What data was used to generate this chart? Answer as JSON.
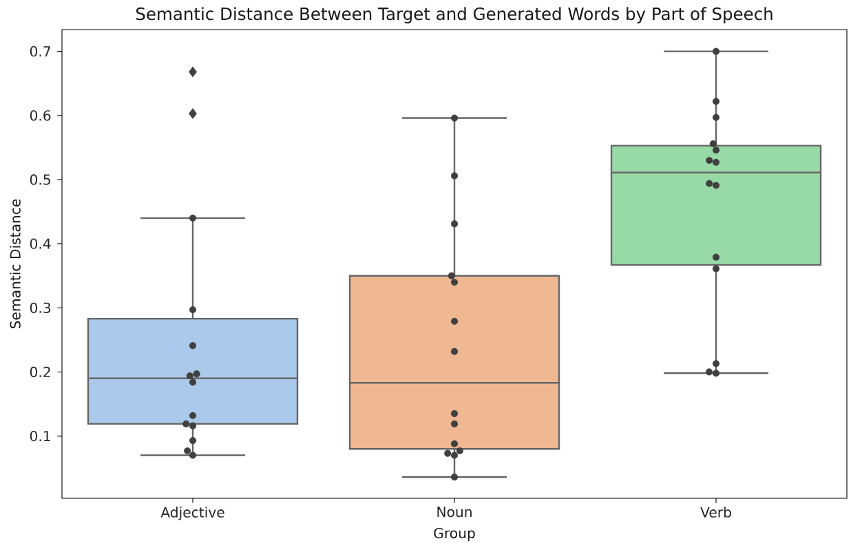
{
  "chart_data": {
    "type": "box",
    "title": "Semantic Distance Between Target and Generated Words by Part of Speech",
    "xlabel": "Group",
    "ylabel": "Semantic Distance",
    "categories": [
      "Adjective",
      "Noun",
      "Verb"
    ],
    "ylim": [
      0.003,
      0.734
    ],
    "yticks": [
      0.1,
      0.2,
      0.3,
      0.4,
      0.5,
      0.6,
      0.7
    ],
    "series": [
      {
        "type": "box",
        "colors": [
          "#abc9ea",
          "#efb792",
          "#98daa7"
        ],
        "marker": "diamond",
        "boxes": [
          {
            "low": 0.07,
            "q1": 0.119,
            "median": 0.19,
            "q3": 0.283,
            "high": 0.44,
            "outliers": [
              0.603,
              0.668
            ]
          },
          {
            "low": 0.036,
            "q1": 0.08,
            "median": 0.183,
            "q3": 0.35,
            "high": 0.596
          },
          {
            "low": 0.198,
            "q1": 0.367,
            "median": 0.511,
            "q3": 0.553,
            "high": 0.7
          }
        ]
      },
      {
        "type": "scatter",
        "color": "#404040",
        "marker": "circle",
        "x": [
          "Adjective",
          "Adjective",
          "Adjective",
          "Adjective",
          "Adjective",
          "Adjective",
          "Adjective",
          "Adjective",
          "Adjective",
          "Adjective",
          "Adjective",
          "Adjective",
          "Noun",
          "Noun",
          "Noun",
          "Noun",
          "Noun",
          "Noun",
          "Noun",
          "Noun",
          "Noun",
          "Noun",
          "Noun",
          "Noun",
          "Noun",
          "Noun",
          "Verb",
          "Verb",
          "Verb",
          "Verb",
          "Verb",
          "Verb",
          "Verb",
          "Verb",
          "Verb",
          "Verb",
          "Verb",
          "Verb",
          "Verb",
          "Verb"
        ],
        "values": [
          0.44,
          0.297,
          0.241,
          0.197,
          0.194,
          0.184,
          0.132,
          0.119,
          0.116,
          0.093,
          0.077,
          0.07,
          0.596,
          0.506,
          0.431,
          0.35,
          0.34,
          0.279,
          0.232,
          0.135,
          0.119,
          0.088,
          0.077,
          0.073,
          0.07,
          0.036,
          0.7,
          0.622,
          0.597,
          0.556,
          0.546,
          0.53,
          0.527,
          0.494,
          0.491,
          0.379,
          0.361,
          0.213,
          0.2,
          0.198
        ]
      }
    ]
  }
}
